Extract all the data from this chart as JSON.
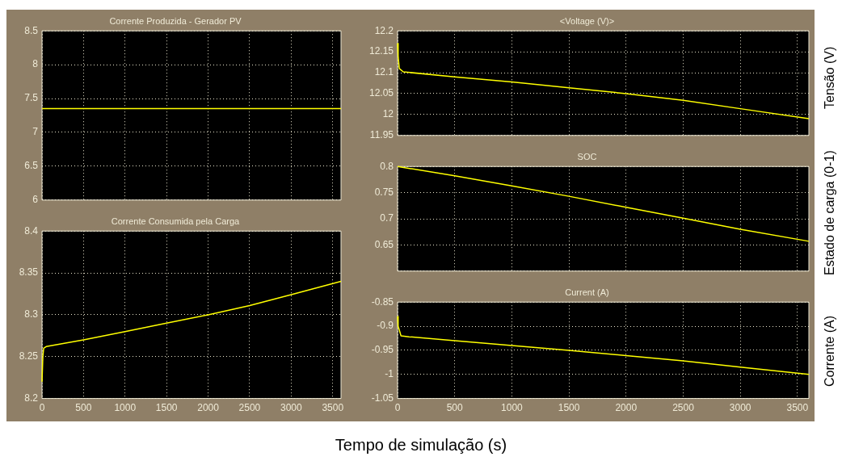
{
  "chart_data": [
    {
      "type": "line",
      "title": "Corrente Produzida - Gerador PV",
      "x": [
        0,
        3600
      ],
      "series": [
        {
          "color": "#ffff00",
          "values": [
            7.35,
            7.35
          ]
        }
      ],
      "xlim": [
        0,
        3600
      ],
      "xticks": [
        0,
        500,
        1000,
        1500,
        2000,
        2500,
        3000,
        3500
      ],
      "ylim": [
        6,
        8.5
      ],
      "yticks": [
        6,
        6.5,
        7,
        7.5,
        8,
        8.5
      ],
      "grid": true,
      "tick_labels": "y",
      "marker": "none"
    },
    {
      "type": "line",
      "title": "Corrente Consumida pela Carga",
      "x": [
        0,
        10,
        20,
        50,
        500,
        1000,
        1500,
        2000,
        2500,
        3000,
        3600
      ],
      "series": [
        {
          "color": "#ffff00",
          "values": [
            8.22,
            8.25,
            8.26,
            8.262,
            8.27,
            8.28,
            8.29,
            8.3,
            8.311,
            8.324,
            8.34
          ]
        }
      ],
      "xlim": [
        0,
        3600
      ],
      "xticks": [
        0,
        500,
        1000,
        1500,
        2000,
        2500,
        3000,
        3500
      ],
      "ylim": [
        8.2,
        8.4
      ],
      "yticks": [
        8.2,
        8.25,
        8.3,
        8.35,
        8.4
      ],
      "grid": true,
      "marker": "none"
    },
    {
      "type": "line",
      "title": "<Voltage (V)>",
      "ylabel": "Tensão (V)",
      "x": [
        0,
        5,
        15,
        50,
        500,
        1000,
        1500,
        2000,
        2500,
        3000,
        3600
      ],
      "series": [
        {
          "color": "#ffff00",
          "values": [
            12.17,
            12.14,
            12.11,
            12.102,
            12.09,
            12.078,
            12.064,
            12.05,
            12.034,
            12.014,
            11.99
          ]
        }
      ],
      "xlim": [
        0,
        3600
      ],
      "xticks": [
        0,
        500,
        1000,
        1500,
        2000,
        2500,
        3000,
        3500
      ],
      "ylim": [
        11.95,
        12.2
      ],
      "yticks": [
        11.95,
        12,
        12.05,
        12.1,
        12.15,
        12.2
      ],
      "grid": true,
      "tick_labels": "y",
      "marker": "none"
    },
    {
      "type": "line",
      "title": "SOC",
      "ylabel": "Estado de carga (0-1)",
      "x": [
        0,
        500,
        1000,
        1500,
        2000,
        2500,
        3000,
        3600
      ],
      "series": [
        {
          "color": "#ffff00",
          "values": [
            0.8,
            0.782,
            0.763,
            0.743,
            0.722,
            0.701,
            0.68,
            0.657
          ]
        }
      ],
      "xlim": [
        0,
        3600
      ],
      "xticks": [
        0,
        500,
        1000,
        1500,
        2000,
        2500,
        3000,
        3500
      ],
      "ylim": [
        0.6,
        0.8
      ],
      "yticks": [
        {
          "value": 0.6,
          "label": null
        },
        0.65,
        0.7,
        0.75,
        0.8
      ],
      "grid": true,
      "tick_labels": "y",
      "marker": "none"
    },
    {
      "type": "line",
      "title": "Current (A)",
      "ylabel": "Corrente (A)",
      "xlabel": "Tempo de simulação (s)",
      "x": [
        0,
        5,
        30,
        100,
        500,
        1000,
        1500,
        2000,
        2500,
        3000,
        3600
      ],
      "series": [
        {
          "color": "#ffff00",
          "values": [
            -0.88,
            -0.9,
            -0.92,
            -0.922,
            -0.93,
            -0.94,
            -0.95,
            -0.961,
            -0.972,
            -0.985,
            -1.0
          ]
        }
      ],
      "xlim": [
        0,
        3600
      ],
      "xticks": [
        0,
        500,
        1000,
        1500,
        2000,
        2500,
        3000,
        3500
      ],
      "ylim": [
        -1.05,
        -0.85
      ],
      "yticks": [
        -1.05,
        -1,
        -0.95,
        -0.9,
        -0.85
      ],
      "grid": true,
      "marker": "none"
    }
  ]
}
